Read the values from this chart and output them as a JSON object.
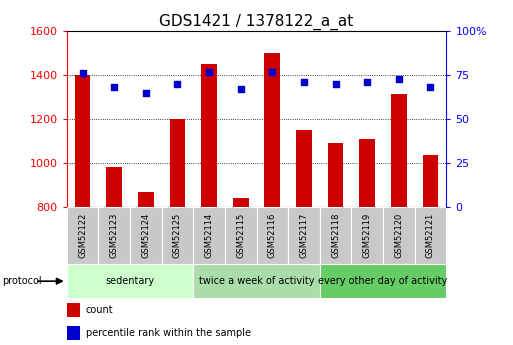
{
  "title": "GDS1421 / 1378122_a_at",
  "samples": [
    "GSM52122",
    "GSM52123",
    "GSM52124",
    "GSM52125",
    "GSM52114",
    "GSM52115",
    "GSM52116",
    "GSM52117",
    "GSM52118",
    "GSM52119",
    "GSM52120",
    "GSM52121"
  ],
  "counts": [
    1400,
    980,
    870,
    1200,
    1450,
    840,
    1500,
    1150,
    1090,
    1110,
    1315,
    1035
  ],
  "percentile_ranks": [
    76,
    68,
    65,
    70,
    77,
    67,
    77,
    71,
    70,
    71,
    73,
    68
  ],
  "ylim_left": [
    800,
    1600
  ],
  "ylim_right": [
    0,
    100
  ],
  "yticks_left": [
    800,
    1000,
    1200,
    1400,
    1600
  ],
  "yticks_right": [
    0,
    25,
    50,
    75,
    100
  ],
  "bar_color": "#cc0000",
  "marker_color": "#0000cc",
  "group_labels": [
    "sedentary",
    "twice a week of activity",
    "every other day of activity"
  ],
  "group_ranges": [
    [
      0,
      3
    ],
    [
      4,
      7
    ],
    [
      8,
      11
    ]
  ],
  "group_colors": [
    "#ccffcc",
    "#aaddaa",
    "#66cc66"
  ],
  "protocol_label": "protocol",
  "legend_count_label": "count",
  "legend_pct_label": "percentile rank within the sample",
  "background_color": "#ffffff",
  "bar_width": 0.5,
  "title_fontsize": 11,
  "sample_box_color": "#c8c8c8",
  "spine_color": "#000000"
}
